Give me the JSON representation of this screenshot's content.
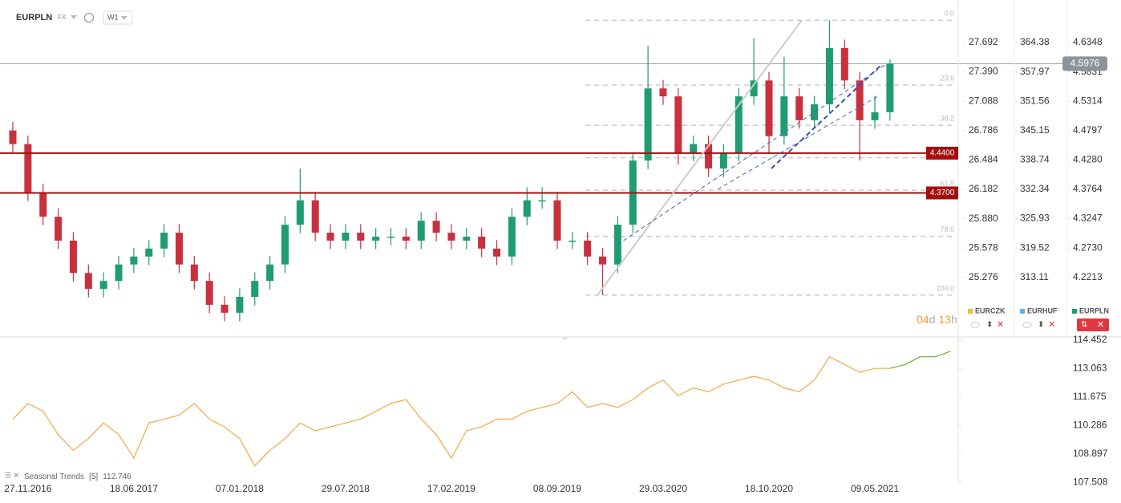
{
  "header": {
    "symbol": "EURPLN",
    "market": "FX",
    "interval": "W1"
  },
  "countdown": {
    "days": "04",
    "days_unit": "d",
    "hours": "13",
    "hours_unit": "h"
  },
  "chart_data": [
    {
      "type": "candlestick",
      "name": "EURPLN",
      "categories": [
        null,
        "27.11.2016",
        null,
        null,
        null,
        null,
        null,
        null,
        "18.06.2017",
        null,
        null,
        null,
        null,
        null,
        null,
        "07.01.2018",
        null,
        null,
        null,
        null,
        null,
        null,
        "29.07.2018",
        null,
        null,
        null,
        null,
        null,
        null,
        "17.02.2019",
        null,
        null,
        null,
        null,
        null,
        null,
        "08.09.2019",
        null,
        null,
        null,
        null,
        null,
        null,
        "29.03.2020",
        null,
        null,
        null,
        null,
        null,
        null,
        "18.10.2020",
        null,
        null,
        null,
        null,
        null,
        null,
        "09.05.2021",
        null,
        null,
        null,
        null,
        null
      ],
      "open": [
        4.48,
        4.456,
        4.371,
        4.328,
        4.286,
        4.229,
        4.201,
        4.215,
        4.244,
        4.258,
        4.272,
        4.3,
        4.244,
        4.215,
        4.173,
        4.159,
        4.187,
        4.215,
        4.244,
        4.314,
        4.357,
        4.3,
        4.286,
        4.3,
        4.286,
        4.293,
        4.293,
        4.286,
        4.321,
        4.3,
        4.286,
        4.293,
        4.272,
        4.258,
        4.328,
        4.357,
        4.357,
        4.286,
        4.286,
        4.258,
        4.244,
        4.314,
        4.427,
        4.554,
        4.54,
        4.441,
        4.456,
        4.413,
        4.441,
        4.54,
        4.568,
        4.47,
        4.54,
        4.498,
        4.526,
        4.625,
        4.568,
        4.498,
        4.512,
        null,
        null,
        null,
        null
      ],
      "high": [
        4.495,
        4.471,
        4.386,
        4.343,
        4.301,
        4.244,
        4.23,
        4.259,
        4.273,
        4.287,
        4.315,
        4.315,
        4.259,
        4.23,
        4.188,
        4.202,
        4.23,
        4.259,
        4.329,
        4.413,
        4.372,
        4.315,
        4.315,
        4.315,
        4.308,
        4.308,
        4.308,
        4.336,
        4.336,
        4.315,
        4.308,
        4.308,
        4.287,
        4.343,
        4.38,
        4.38,
        4.372,
        4.301,
        4.301,
        4.273,
        4.329,
        4.442,
        4.629,
        4.569,
        4.555,
        4.471,
        4.471,
        4.456,
        4.555,
        4.642,
        4.583,
        4.61,
        4.555,
        4.541,
        4.674,
        4.64,
        4.583,
        4.541,
        4.605,
        null,
        null,
        null,
        null
      ],
      "low": [
        4.441,
        4.356,
        4.313,
        4.271,
        4.214,
        4.186,
        4.186,
        4.2,
        4.229,
        4.243,
        4.257,
        4.229,
        4.2,
        4.158,
        4.144,
        4.144,
        4.172,
        4.2,
        4.229,
        4.299,
        4.285,
        4.271,
        4.271,
        4.271,
        4.271,
        4.278,
        4.271,
        4.271,
        4.285,
        4.271,
        4.271,
        4.257,
        4.243,
        4.243,
        4.313,
        4.342,
        4.271,
        4.271,
        4.243,
        4.19,
        4.229,
        4.299,
        4.412,
        4.525,
        4.42,
        4.426,
        4.398,
        4.398,
        4.426,
        4.525,
        4.44,
        4.455,
        4.483,
        4.483,
        4.511,
        4.553,
        4.427,
        4.483,
        4.497,
        null,
        null,
        null,
        null
      ],
      "close": [
        4.456,
        4.371,
        4.328,
        4.286,
        4.229,
        4.201,
        4.215,
        4.244,
        4.258,
        4.272,
        4.3,
        4.244,
        4.215,
        4.173,
        4.159,
        4.187,
        4.215,
        4.244,
        4.314,
        4.357,
        4.3,
        4.286,
        4.3,
        4.286,
        4.293,
        4.293,
        4.286,
        4.321,
        4.3,
        4.286,
        4.293,
        4.272,
        4.258,
        4.328,
        4.357,
        4.357,
        4.286,
        4.286,
        4.258,
        4.244,
        4.314,
        4.427,
        4.554,
        4.54,
        4.441,
        4.456,
        4.413,
        4.441,
        4.54,
        4.568,
        4.47,
        4.54,
        4.498,
        4.526,
        4.625,
        4.568,
        4.498,
        4.512,
        4.5976,
        null,
        null,
        null,
        null
      ],
      "up_color": "#1f9c72",
      "down_color": "#c9303e",
      "ylim": [
        4.1164,
        4.7097
      ],
      "yticks": [
        4.6348,
        4.5831,
        4.5314,
        4.4797,
        {
          "value": 4.428,
          "label": "4.4280"
        },
        4.3764,
        4.3247,
        {
          "value": 4.273,
          "label": "4.2730"
        },
        4.2213
      ],
      "y2lim": [
        24.664,
        28.129
      ],
      "y2ticks": [
        27.692,
        {
          "value": 27.39,
          "label": "27.390"
        },
        27.088,
        26.786,
        26.484,
        26.182,
        {
          "value": 25.88,
          "label": "25.880"
        },
        25.578,
        25.276
      ],
      "y3lim": [
        300.11,
        373.66
      ],
      "y3ticks": [
        364.38,
        357.97,
        351.56,
        345.15,
        338.74,
        332.34,
        325.93,
        319.52,
        313.11
      ],
      "legend": [
        {
          "name": "EURCZK",
          "color": "#f2c230"
        },
        {
          "name": "EURHUF",
          "color": "#5db0ea"
        },
        {
          "name": "EURPLN",
          "color": "#1f9c72"
        }
      ],
      "hlines": [
        {
          "value": 4.44,
          "label": "4.4400",
          "color": "#a80d0d"
        },
        {
          "value": 4.37,
          "label": "4.3700",
          "color": "#a80d0d"
        }
      ],
      "last_price": {
        "value": 4.5976,
        "label": "4.5976"
      },
      "fibonacci": {
        "high": 4.674,
        "low": 4.19,
        "levels": [
          {
            "value": 0,
            "label": "0.0"
          },
          23.6,
          38.2,
          61.8,
          78.6,
          {
            "value": 100,
            "label": "100.0"
          }
        ],
        "unlabeled_levels": [
          50
        ]
      }
    },
    {
      "type": "line",
      "title": "Seasonal Trends",
      "parameter": "[5]",
      "value": 112.746,
      "series": [
        {
          "color": "#f5a742",
          "values": [
            110.59,
            111.351,
            110.971,
            109.829,
            109.068,
            109.639,
            110.4,
            109.829,
            108.688,
            110.4,
            110.59,
            110.781,
            111.351,
            110.59,
            110.21,
            109.639,
            108.307,
            109.068,
            109.639,
            110.4,
            110.02,
            110.21,
            110.4,
            110.59,
            110.971,
            111.351,
            111.542,
            110.59,
            109.829,
            108.688,
            110.02,
            110.21,
            110.59,
            110.59,
            110.971,
            111.161,
            111.351,
            111.922,
            111.161,
            111.351,
            111.161,
            111.542,
            112.112,
            112.493,
            111.732,
            112.112,
            111.922,
            112.303,
            112.493,
            112.683,
            112.493,
            112.112,
            111.922,
            112.493,
            113.634,
            113.254,
            112.873,
            113.064,
            113.064,
            null,
            null,
            null,
            null
          ]
        },
        {
          "color": "#6aae2a",
          "values": [
            null,
            null,
            null,
            null,
            null,
            null,
            null,
            null,
            null,
            null,
            null,
            null,
            null,
            null,
            null,
            null,
            null,
            null,
            null,
            null,
            null,
            null,
            null,
            null,
            null,
            null,
            null,
            null,
            null,
            null,
            null,
            null,
            null,
            null,
            null,
            null,
            null,
            null,
            null,
            null,
            null,
            null,
            null,
            null,
            null,
            null,
            null,
            null,
            null,
            null,
            null,
            null,
            null,
            null,
            null,
            null,
            null,
            null,
            113.064,
            113.254,
            113.634,
            113.634,
            113.9
          ]
        }
      ],
      "ylim": [
        107.356,
        114.6
      ],
      "yticks": [
        114.452,
        113.063,
        111.675,
        110.286,
        108.897,
        107.508
      ]
    }
  ]
}
